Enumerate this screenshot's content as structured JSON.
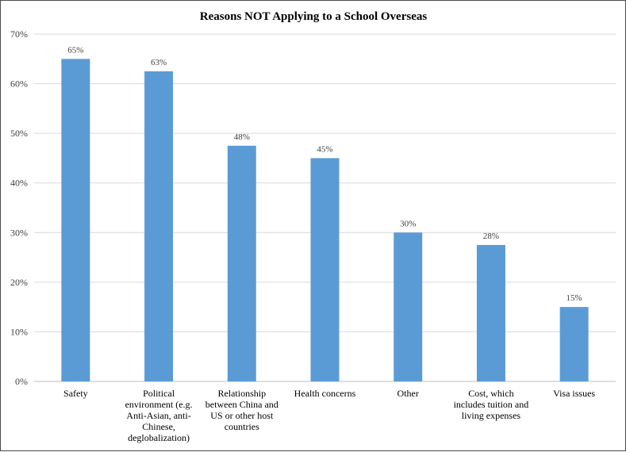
{
  "chart_data": {
    "type": "bar",
    "title": "Reasons NOT Applying to a School Overseas",
    "xlabel": "",
    "ylabel": "",
    "ylim": [
      0,
      70
    ],
    "yticks": [
      "0%",
      "10%",
      "20%",
      "30%",
      "40%",
      "50%",
      "60%",
      "70%"
    ],
    "grid": true,
    "bar_color": "#5b9bd5",
    "categories": [
      [
        "Safety"
      ],
      [
        "Political",
        "environment (e.g.",
        "Anti-Asian, anti-",
        "Chinese,",
        "deglobalization)"
      ],
      [
        "Relationship",
        "between China and",
        "US or other host",
        "countries"
      ],
      [
        "Health concerns"
      ],
      [
        "Other"
      ],
      [
        "Cost, which",
        "includes tuition and",
        "living expenses"
      ],
      [
        "Visa issues"
      ]
    ],
    "values": [
      65,
      62.5,
      47.5,
      45,
      30,
      27.5,
      15
    ],
    "data_labels": [
      "65%",
      "63%",
      "48%",
      "45%",
      "30%",
      "28%",
      "15%"
    ]
  }
}
